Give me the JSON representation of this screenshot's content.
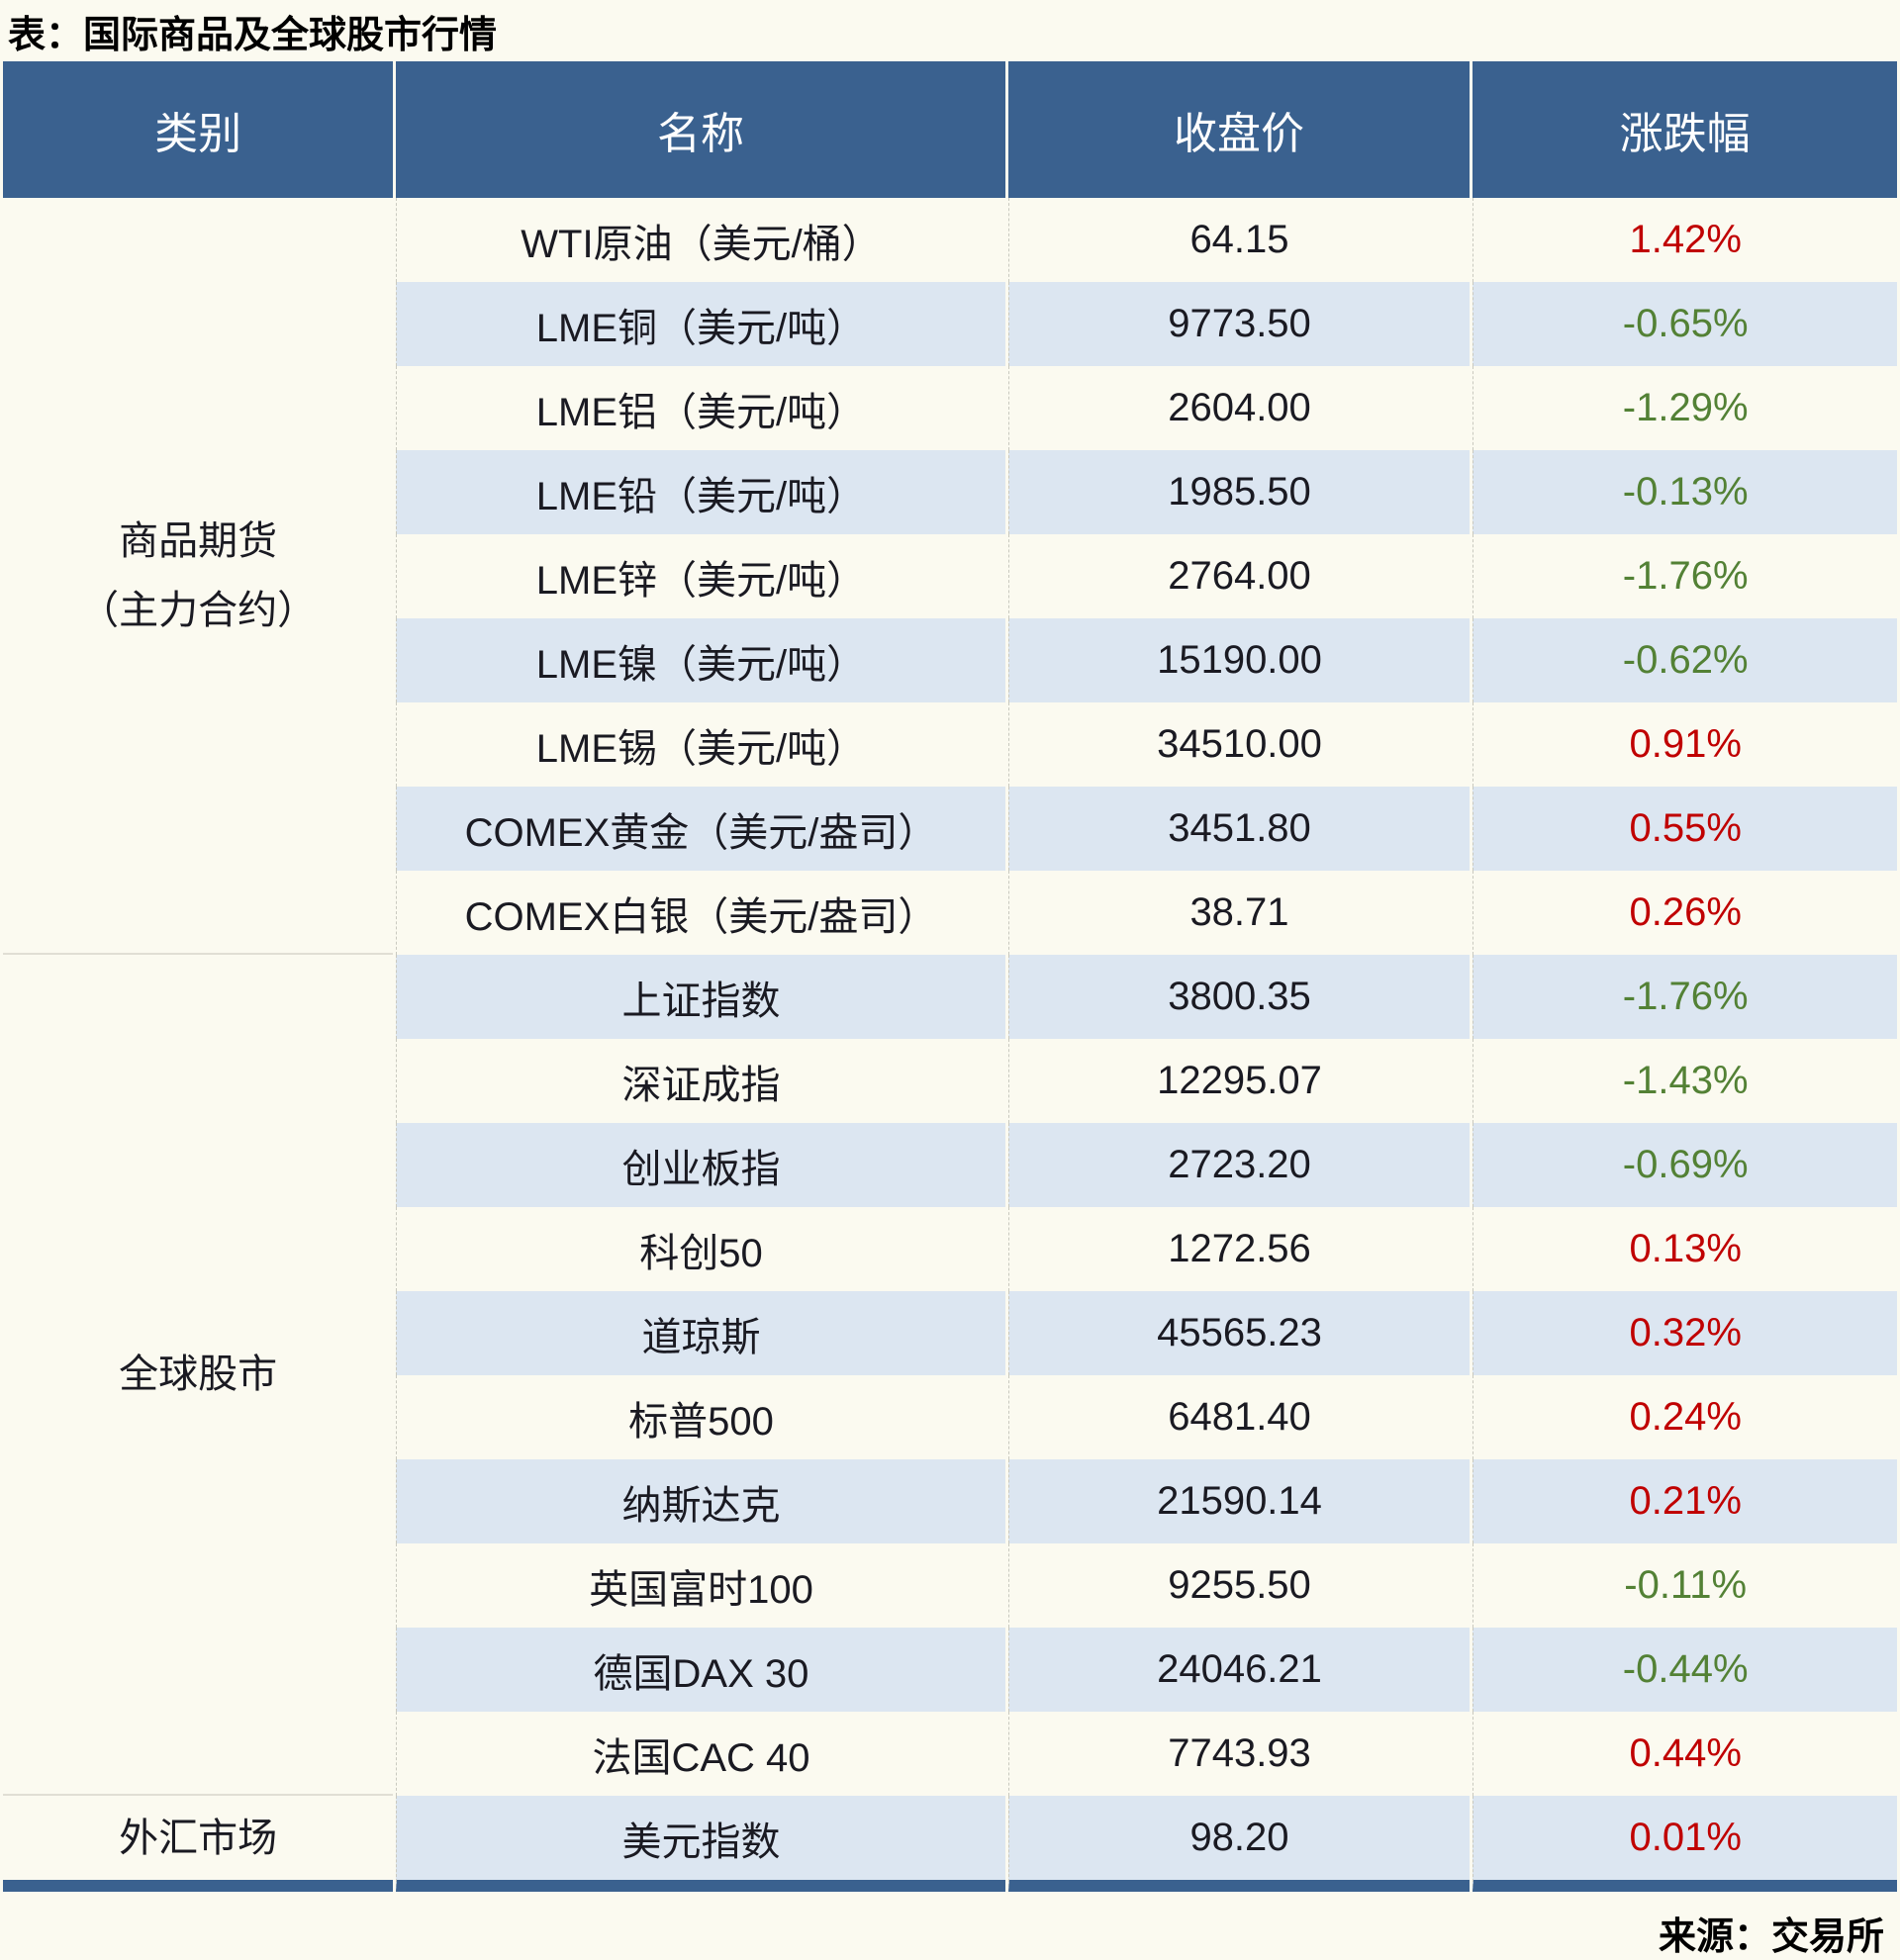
{
  "title": "表：国际商品及全球股市行情",
  "source": "来源：交易所",
  "colors": {
    "header_bg": "#3a618f",
    "stripe_bg": "#dce6f1",
    "page_bg": "#fbfaf0",
    "up": "#c00000",
    "down": "#538135"
  },
  "table": {
    "columns": [
      "类别",
      "名称",
      "收盘价",
      "涨跌幅"
    ],
    "sections": [
      {
        "category": "商品期货（主力合约）",
        "category_lines": [
          "商品期货",
          "（主力合约）"
        ],
        "rows": [
          {
            "name": "WTI原油（美元/桶）",
            "close": "64.15",
            "change": "1.42%",
            "direction": "up"
          },
          {
            "name": "LME铜（美元/吨）",
            "close": "9773.50",
            "change": "-0.65%",
            "direction": "down"
          },
          {
            "name": "LME铝（美元/吨）",
            "close": "2604.00",
            "change": "-1.29%",
            "direction": "down"
          },
          {
            "name": "LME铅（美元/吨）",
            "close": "1985.50",
            "change": "-0.13%",
            "direction": "down"
          },
          {
            "name": "LME锌（美元/吨）",
            "close": "2764.00",
            "change": "-1.76%",
            "direction": "down"
          },
          {
            "name": "LME镍（美元/吨）",
            "close": "15190.00",
            "change": "-0.62%",
            "direction": "down"
          },
          {
            "name": "LME锡（美元/吨）",
            "close": "34510.00",
            "change": "0.91%",
            "direction": "up"
          },
          {
            "name": "COMEX黄金（美元/盎司）",
            "close": "3451.80",
            "change": "0.55%",
            "direction": "up"
          },
          {
            "name": "COMEX白银（美元/盎司）",
            "close": "38.71",
            "change": "0.26%",
            "direction": "up"
          }
        ]
      },
      {
        "category": "全球股市",
        "category_lines": [
          "全球股市"
        ],
        "rows": [
          {
            "name": "上证指数",
            "close": "3800.35",
            "change": "-1.76%",
            "direction": "down"
          },
          {
            "name": "深证成指",
            "close": "12295.07",
            "change": "-1.43%",
            "direction": "down"
          },
          {
            "name": "创业板指",
            "close": "2723.20",
            "change": "-0.69%",
            "direction": "down"
          },
          {
            "name": "科创50",
            "close": "1272.56",
            "change": "0.13%",
            "direction": "up"
          },
          {
            "name": "道琼斯",
            "close": "45565.23",
            "change": "0.32%",
            "direction": "up"
          },
          {
            "name": "标普500",
            "close": "6481.40",
            "change": "0.24%",
            "direction": "up"
          },
          {
            "name": "纳斯达克",
            "close": "21590.14",
            "change": "0.21%",
            "direction": "up"
          },
          {
            "name": "英国富时100",
            "close": "9255.50",
            "change": "-0.11%",
            "direction": "down"
          },
          {
            "name": "德国DAX 30",
            "close": "24046.21",
            "change": "-0.44%",
            "direction": "down"
          },
          {
            "name": "法国CAC 40",
            "close": "7743.93",
            "change": "0.44%",
            "direction": "up"
          }
        ]
      },
      {
        "category": "外汇市场",
        "category_lines": [
          "外汇市场"
        ],
        "rows": [
          {
            "name": "美元指数",
            "close": "98.20",
            "change": "0.01%",
            "direction": "up"
          }
        ]
      }
    ]
  },
  "chart_data": {
    "type": "table",
    "title": "表：国际商品及全球股市行情",
    "columns": [
      "类别",
      "名称",
      "收盘价",
      "涨跌幅"
    ],
    "rows": [
      [
        "商品期货（主力合约）",
        "WTI原油（美元/桶）",
        "64.15",
        "1.42%"
      ],
      [
        "商品期货（主力合约）",
        "LME铜（美元/吨）",
        "9773.50",
        "-0.65%"
      ],
      [
        "商品期货（主力合约）",
        "LME铝（美元/吨）",
        "2604.00",
        "-1.29%"
      ],
      [
        "商品期货（主力合约）",
        "LME铅（美元/吨）",
        "1985.50",
        "-0.13%"
      ],
      [
        "商品期货（主力合约）",
        "LME锌（美元/吨）",
        "2764.00",
        "-1.76%"
      ],
      [
        "商品期货（主力合约）",
        "LME镍（美元/吨）",
        "15190.00",
        "-0.62%"
      ],
      [
        "商品期货（主力合约）",
        "LME锡（美元/吨）",
        "34510.00",
        "0.91%"
      ],
      [
        "商品期货（主力合约）",
        "COMEX黄金（美元/盎司）",
        "3451.80",
        "0.55%"
      ],
      [
        "商品期货（主力合约）",
        "COMEX白银（美元/盎司）",
        "38.71",
        "0.26%"
      ],
      [
        "全球股市",
        "上证指数",
        "3800.35",
        "-1.76%"
      ],
      [
        "全球股市",
        "深证成指",
        "12295.07",
        "-1.43%"
      ],
      [
        "全球股市",
        "创业板指",
        "2723.20",
        "-0.69%"
      ],
      [
        "全球股市",
        "科创50",
        "1272.56",
        "0.13%"
      ],
      [
        "全球股市",
        "道琼斯",
        "45565.23",
        "0.32%"
      ],
      [
        "全球股市",
        "标普500",
        "6481.40",
        "0.24%"
      ],
      [
        "全球股市",
        "纳斯达克",
        "21590.14",
        "0.21%"
      ],
      [
        "全球股市",
        "英国富时100",
        "9255.50",
        "-0.11%"
      ],
      [
        "全球股市",
        "德国DAX 30",
        "24046.21",
        "-0.44%"
      ],
      [
        "全球股市",
        "法国CAC 40",
        "7743.93",
        "0.44%"
      ],
      [
        "外汇市场",
        "美元指数",
        "98.20",
        "0.01%"
      ]
    ],
    "notes": "positive changes shown in red (#c00000), negative in green (#538135); alternating row stripes (#dce6f1)",
    "source": "来源：交易所"
  }
}
